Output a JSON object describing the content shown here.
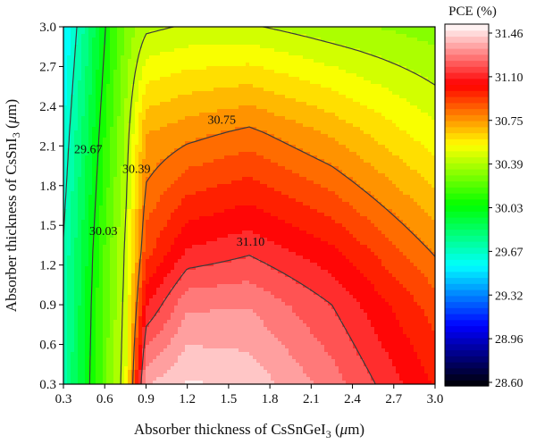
{
  "chart_data": {
    "type": "contour",
    "xlabel": "Absorber thickness of CsSnGeI",
    "xlabel_sub": "3",
    "xlabel_unit_pre": " (",
    "xlabel_mu": "μ",
    "xlabel_unit_post": "m)",
    "ylabel": "Absorber thickness of CsSnI",
    "ylabel_sub": "3",
    "ylabel_unit_pre": " (",
    "ylabel_mu": "μ",
    "ylabel_unit_post": "m)",
    "xlim": [
      0.3,
      3.0
    ],
    "ylim": [
      0.3,
      3.0
    ],
    "x_ticks": [
      "0.3",
      "0.6",
      "0.9",
      "1.2",
      "1.5",
      "1.8",
      "2.1",
      "2.4",
      "2.7",
      "3.0"
    ],
    "y_ticks": [
      "0.3",
      "0.6",
      "0.9",
      "1.2",
      "1.5",
      "1.8",
      "2.1",
      "2.4",
      "2.7",
      "3.0"
    ],
    "colorbar": {
      "title": "PCE (%)",
      "range": [
        28.6,
        31.46
      ],
      "ticks": [
        "28.60",
        "28.96",
        "29.32",
        "29.67",
        "30.03",
        "30.39",
        "30.75",
        "31.10",
        "31.46"
      ],
      "colors": [
        "#000000",
        "#0000ff",
        "#00ffff",
        "#00ff00",
        "#ffff00",
        "#ff0000",
        "#ffffff"
      ]
    },
    "x_grid": [
      0.3,
      0.45,
      0.6,
      0.75,
      0.9,
      1.2,
      1.65,
      2.25,
      3.0
    ],
    "y_grid": [
      0.3,
      0.9,
      1.3,
      2.2,
      3.0
    ],
    "z_values": [
      [
        29.72,
        29.96,
        30.22,
        30.44,
        31.31,
        31.4,
        31.37,
        31.21,
        30.95
      ],
      [
        29.7,
        29.94,
        30.2,
        30.42,
        31.02,
        31.23,
        31.24,
        31.1,
        30.85
      ],
      [
        29.68,
        29.92,
        30.18,
        30.4,
        30.86,
        31.04,
        31.09,
        30.98,
        30.74
      ],
      [
        29.6,
        29.84,
        30.1,
        30.33,
        30.67,
        30.72,
        30.77,
        30.66,
        30.48
      ],
      [
        29.52,
        29.75,
        30.02,
        30.26,
        30.37,
        30.4,
        30.4,
        30.34,
        30.28
      ]
    ],
    "contour_labels": [
      {
        "text": "29.67",
        "x": 0.48,
        "y": 2.08
      },
      {
        "text": "30.39",
        "x": 0.83,
        "y": 1.93
      },
      {
        "text": "30.03",
        "x": 0.59,
        "y": 1.46
      },
      {
        "text": "30.75",
        "x": 1.45,
        "y": 2.3
      },
      {
        "text": "31.10",
        "x": 1.66,
        "y": 1.38
      }
    ]
  }
}
